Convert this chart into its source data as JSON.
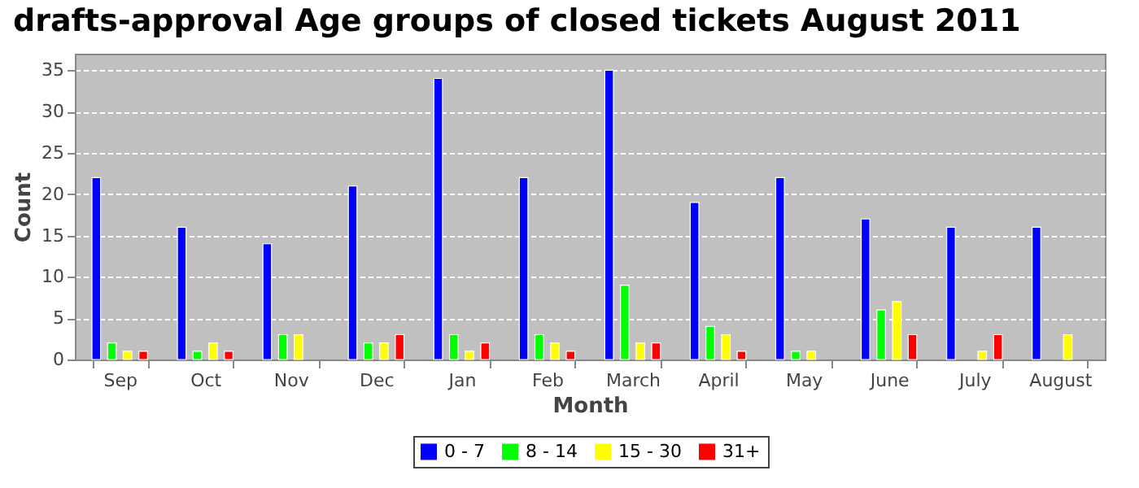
{
  "chart_data": {
    "type": "bar",
    "title": "drafts-approval Age groups of closed tickets August 2011",
    "xlabel": "Month",
    "ylabel": "Count",
    "categories": [
      "Sep",
      "Oct",
      "Nov",
      "Dec",
      "Jan",
      "Feb",
      "March",
      "April",
      "May",
      "June",
      "July",
      "August"
    ],
    "series": [
      {
        "name": "0 - 7",
        "color": "#0000ff",
        "values": [
          22,
          16,
          14,
          21,
          34,
          22,
          35,
          19,
          22,
          17,
          16,
          16
        ]
      },
      {
        "name": "8 - 14",
        "color": "#00ff00",
        "values": [
          2,
          1,
          3,
          2,
          3,
          3,
          9,
          4,
          1,
          6,
          null,
          null
        ]
      },
      {
        "name": "15 - 30",
        "color": "#ffff00",
        "values": [
          1,
          2,
          3,
          2,
          1,
          2,
          2,
          3,
          1,
          7,
          1,
          3
        ]
      },
      {
        "name": "31+",
        "color": "#ff0000",
        "values": [
          1,
          1,
          null,
          3,
          2,
          1,
          2,
          1,
          null,
          3,
          3,
          null
        ]
      }
    ],
    "ylim": [
      0,
      37
    ],
    "yticks": [
      0,
      5,
      10,
      15,
      20,
      25,
      30,
      35
    ],
    "grid": "y",
    "legend": "bottom"
  }
}
